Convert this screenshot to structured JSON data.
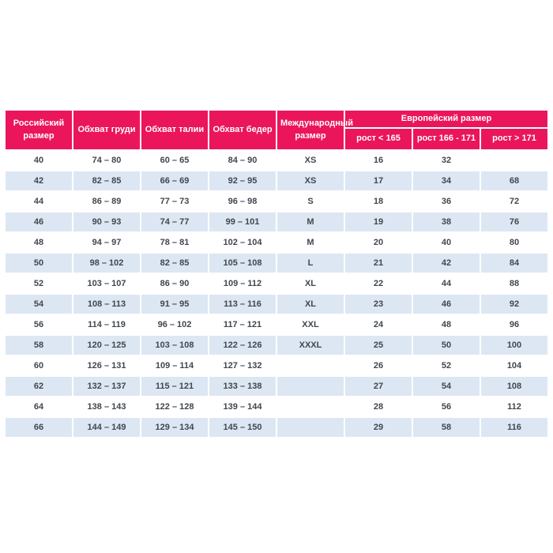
{
  "colors": {
    "header_bg": "#EB155C",
    "header_text": "#FFFFFF",
    "row_bg": "#FFFFFF",
    "row_alt_bg": "#DCE7F3",
    "cell_text": "#40474E",
    "page_bg": "#FFFFFF"
  },
  "table": {
    "headers": {
      "russian_size": "Российский размер",
      "chest": "Обхват груди",
      "waist": "Обхват талии",
      "hips": "Обхват бедер",
      "international": "Международный размер",
      "european_group": "Европейский размер",
      "height_lt_165": "рост < 165",
      "height_166_171": "рост 166 - 171",
      "height_gt_171": "рост > 171"
    },
    "rows": [
      [
        "40",
        "74 – 80",
        "60 – 65",
        "84 – 90",
        "XS",
        "16",
        "32",
        ""
      ],
      [
        "42",
        "82 – 85",
        "66 – 69",
        "92 – 95",
        "XS",
        "17",
        "34",
        "68"
      ],
      [
        "44",
        "86 – 89",
        "77 – 73",
        "96 – 98",
        "S",
        "18",
        "36",
        "72"
      ],
      [
        "46",
        "90 – 93",
        "74 – 77",
        "99 – 101",
        "M",
        "19",
        "38",
        "76"
      ],
      [
        "48",
        "94 – 97",
        "78 – 81",
        "102 – 104",
        "M",
        "20",
        "40",
        "80"
      ],
      [
        "50",
        "98 – 102",
        "82 – 85",
        "105 – 108",
        "L",
        "21",
        "42",
        "84"
      ],
      [
        "52",
        "103 – 107",
        "86 – 90",
        "109 – 112",
        "XL",
        "22",
        "44",
        "88"
      ],
      [
        "54",
        "108 – 113",
        "91 – 95",
        "113 – 116",
        "XL",
        "23",
        "46",
        "92"
      ],
      [
        "56",
        "114 – 119",
        "96 – 102",
        "117 – 121",
        "XXL",
        "24",
        "48",
        "96"
      ],
      [
        "58",
        "120 – 125",
        "103 – 108",
        "122 – 126",
        "XXXL",
        "25",
        "50",
        "100"
      ],
      [
        "60",
        "126 – 131",
        "109 – 114",
        "127 – 132",
        "",
        "26",
        "52",
        "104"
      ],
      [
        "62",
        "132 – 137",
        "115 – 121",
        "133 – 138",
        "",
        "27",
        "54",
        "108"
      ],
      [
        "64",
        "138 – 143",
        "122 – 128",
        "139 – 144",
        "",
        "28",
        "56",
        "112"
      ],
      [
        "66",
        "144 – 149",
        "129 – 134",
        "145 – 150",
        "",
        "29",
        "58",
        "116"
      ]
    ]
  }
}
